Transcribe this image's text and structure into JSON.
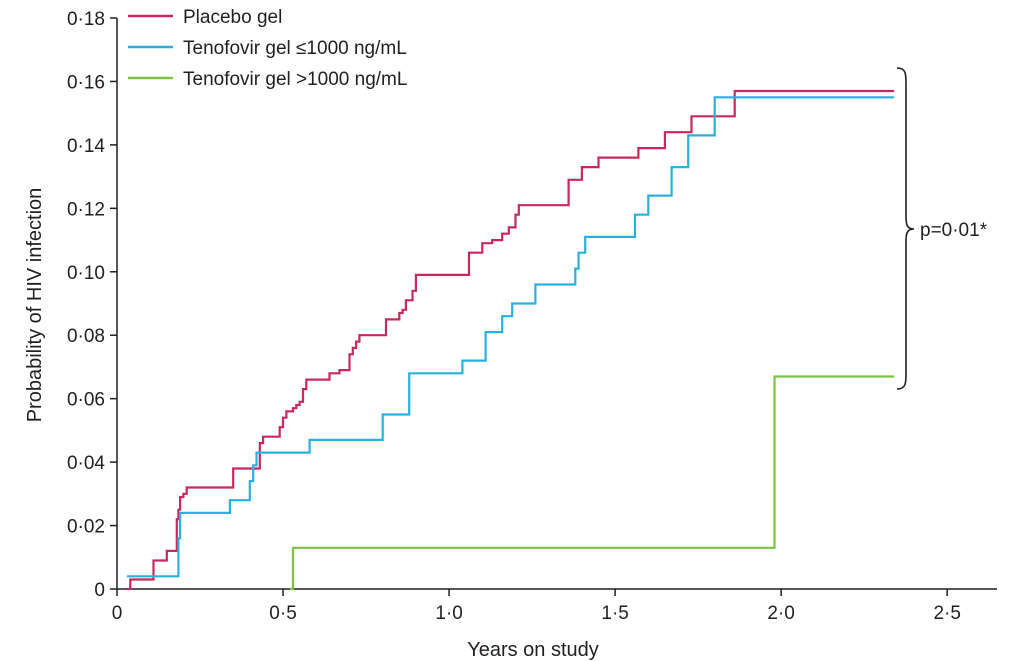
{
  "chart_data": {
    "type": "line",
    "step": true,
    "xlabel": "Years on study",
    "ylabel": "Probability of HIV infection",
    "xlim": [
      0,
      2.65
    ],
    "ylim": [
      0,
      0.18
    ],
    "xticks": [
      0,
      0.5,
      1.0,
      1.5,
      2.0,
      2.5
    ],
    "xtick_labels": [
      "0",
      "0·5",
      "1·0",
      "1·5",
      "2·0",
      "2·5"
    ],
    "yticks": [
      0,
      0.02,
      0.04,
      0.06,
      0.08,
      0.1,
      0.12,
      0.14,
      0.16,
      0.18
    ],
    "ytick_labels": [
      "0",
      "0·02",
      "0·04",
      "0·06",
      "0·08",
      "0·10",
      "0·12",
      "0·14",
      "0·16",
      "0·18"
    ],
    "grid": false,
    "legend_position": "top-left",
    "series": [
      {
        "name": "Placebo gel",
        "color": "#c8285a",
        "x": [
          0.03,
          0.04,
          0.1,
          0.11,
          0.15,
          0.18,
          0.185,
          0.19,
          0.2,
          0.21,
          0.34,
          0.35,
          0.42,
          0.43,
          0.44,
          0.49,
          0.5,
          0.51,
          0.53,
          0.54,
          0.55,
          0.56,
          0.57,
          0.62,
          0.64,
          0.67,
          0.7,
          0.71,
          0.72,
          0.73,
          0.8,
          0.81,
          0.85,
          0.86,
          0.87,
          0.89,
          0.9,
          1.03,
          1.06,
          1.1,
          1.13,
          1.16,
          1.18,
          1.2,
          1.21,
          1.35,
          1.36,
          1.4,
          1.45,
          1.57,
          1.62,
          1.65,
          1.67,
          1.73,
          1.86,
          2.34
        ],
        "y": [
          0,
          0.003,
          0.003,
          0.009,
          0.012,
          0.022,
          0.025,
          0.029,
          0.03,
          0.032,
          0.032,
          0.038,
          0.038,
          0.046,
          0.048,
          0.051,
          0.054,
          0.056,
          0.057,
          0.058,
          0.059,
          0.063,
          0.066,
          0.066,
          0.068,
          0.069,
          0.074,
          0.076,
          0.078,
          0.08,
          0.08,
          0.085,
          0.087,
          0.088,
          0.091,
          0.094,
          0.099,
          0.099,
          0.106,
          0.109,
          0.11,
          0.112,
          0.114,
          0.118,
          0.121,
          0.121,
          0.129,
          0.133,
          0.136,
          0.139,
          0.139,
          0.144,
          0.144,
          0.149,
          0.157,
          0.157
        ]
      },
      {
        "name": "Tenofovir gel ≤1000 ng/mL",
        "color": "#2ab0de",
        "x": [
          0.03,
          0.18,
          0.185,
          0.19,
          0.34,
          0.4,
          0.41,
          0.42,
          0.58,
          0.8,
          0.88,
          1.04,
          1.11,
          1.16,
          1.19,
          1.26,
          1.38,
          1.39,
          1.41,
          1.56,
          1.6,
          1.67,
          1.72,
          1.8,
          1.87,
          2.34
        ],
        "y": [
          0.004,
          0.004,
          0.016,
          0.024,
          0.028,
          0.034,
          0.039,
          0.043,
          0.047,
          0.055,
          0.068,
          0.072,
          0.081,
          0.086,
          0.09,
          0.096,
          0.101,
          0.106,
          0.111,
          0.118,
          0.124,
          0.133,
          0.143,
          0.155,
          0.155,
          0.155
        ]
      },
      {
        "name": "Tenofovir gel >1000 ng/mL",
        "color": "#7cc243",
        "x": [
          0.52,
          0.53,
          1.97,
          1.98,
          2.34
        ],
        "y": [
          0,
          0.013,
          0.013,
          0.067,
          0.067
        ]
      }
    ],
    "annotations": [
      {
        "text": "p=0·01*"
      }
    ]
  }
}
